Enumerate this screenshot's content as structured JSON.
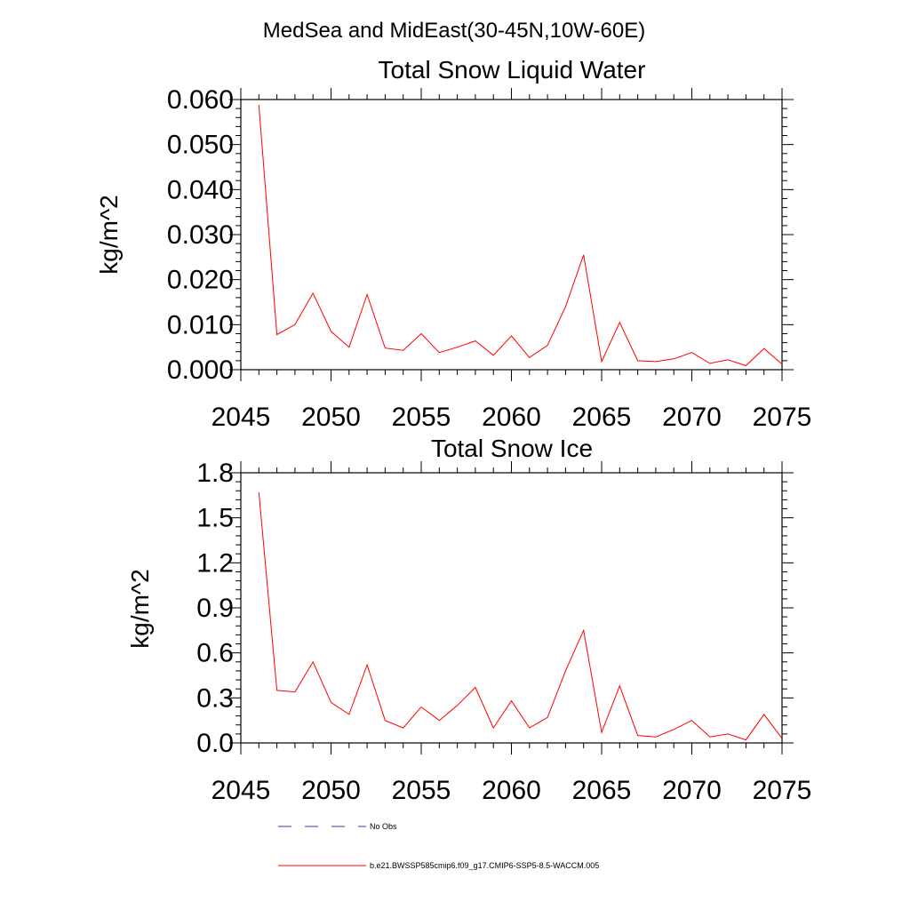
{
  "title": "MedSea and MidEast(30-45N,10W-60E)",
  "chart_data": [
    {
      "type": "line",
      "title": "Total Snow Liquid Water",
      "xlabel": "",
      "ylabel": "kg/m^2",
      "xlim": [
        2045,
        2075
      ],
      "ylim": [
        0,
        0.06
      ],
      "xticks": [
        2045,
        2050,
        2055,
        2060,
        2065,
        2070,
        2075
      ],
      "xtick_labels": [
        "2045",
        "2050",
        "2055",
        "2060",
        "2065",
        "2070",
        "2075"
      ],
      "yticks": [
        0,
        0.01,
        0.02,
        0.03,
        0.04,
        0.05,
        0.06
      ],
      "ytick_labels": [
        "0.000",
        "0.010",
        "0.020",
        "0.030",
        "0.040",
        "0.050",
        "0.060"
      ],
      "series": [
        {
          "name": "b.e21.BWSSP585cmip6.f09_g17.CMIP6-SSP5-8.5-WACCM.005",
          "color": "#ff0000",
          "x": [
            2046,
            2047,
            2048,
            2049,
            2050,
            2051,
            2052,
            2053,
            2054,
            2055,
            2056,
            2057,
            2058,
            2059,
            2060,
            2061,
            2062,
            2063,
            2064,
            2065,
            2066,
            2067,
            2068,
            2069,
            2070,
            2071,
            2072,
            2073,
            2074,
            2075
          ],
          "values": [
            0.0588,
            0.0078,
            0.01,
            0.017,
            0.0085,
            0.005,
            0.0167,
            0.0048,
            0.0043,
            0.008,
            0.0038,
            0.005,
            0.0064,
            0.0032,
            0.0075,
            0.0027,
            0.0054,
            0.014,
            0.0255,
            0.0018,
            0.0105,
            0.002,
            0.0018,
            0.0024,
            0.0038,
            0.0014,
            0.0022,
            0.0009,
            0.0047,
            0.0012
          ]
        }
      ]
    },
    {
      "type": "line",
      "title": "Total Snow Ice",
      "xlabel": "",
      "ylabel": "kg/m^2",
      "xlim": [
        2045,
        2075
      ],
      "ylim": [
        0,
        1.8
      ],
      "xticks": [
        2045,
        2050,
        2055,
        2060,
        2065,
        2070,
        2075
      ],
      "xtick_labels": [
        "2045",
        "2050",
        "2055",
        "2060",
        "2065",
        "2070",
        "2075"
      ],
      "yticks": [
        0,
        0.3,
        0.6,
        0.9,
        1.2,
        1.5,
        1.8
      ],
      "ytick_labels": [
        "0.0",
        "0.3",
        "0.6",
        "0.9",
        "1.2",
        "1.5",
        "1.8"
      ],
      "series": [
        {
          "name": "b.e21.BWSSP585cmip6.f09_g17.CMIP6-SSP5-8.5-WACCM.005",
          "color": "#ff0000",
          "x": [
            2046,
            2047,
            2048,
            2049,
            2050,
            2051,
            2052,
            2053,
            2054,
            2055,
            2056,
            2057,
            2058,
            2059,
            2060,
            2061,
            2062,
            2063,
            2064,
            2065,
            2066,
            2067,
            2068,
            2069,
            2070,
            2071,
            2072,
            2073,
            2074,
            2075
          ],
          "values": [
            1.67,
            0.35,
            0.34,
            0.54,
            0.27,
            0.19,
            0.52,
            0.15,
            0.1,
            0.24,
            0.15,
            0.25,
            0.37,
            0.1,
            0.28,
            0.1,
            0.17,
            0.48,
            0.75,
            0.07,
            0.38,
            0.05,
            0.04,
            0.09,
            0.15,
            0.04,
            0.06,
            0.02,
            0.19,
            0.03
          ]
        }
      ]
    }
  ],
  "legend": {
    "items": [
      {
        "label": "No Obs",
        "color": "#3a3aa0",
        "style": "dashed"
      },
      {
        "label": "b.e21.BWSSP585cmip6.f09_g17.CMIP6-SSP5-8.5-WACCM.005",
        "color": "#ff0000",
        "style": "solid"
      }
    ]
  }
}
